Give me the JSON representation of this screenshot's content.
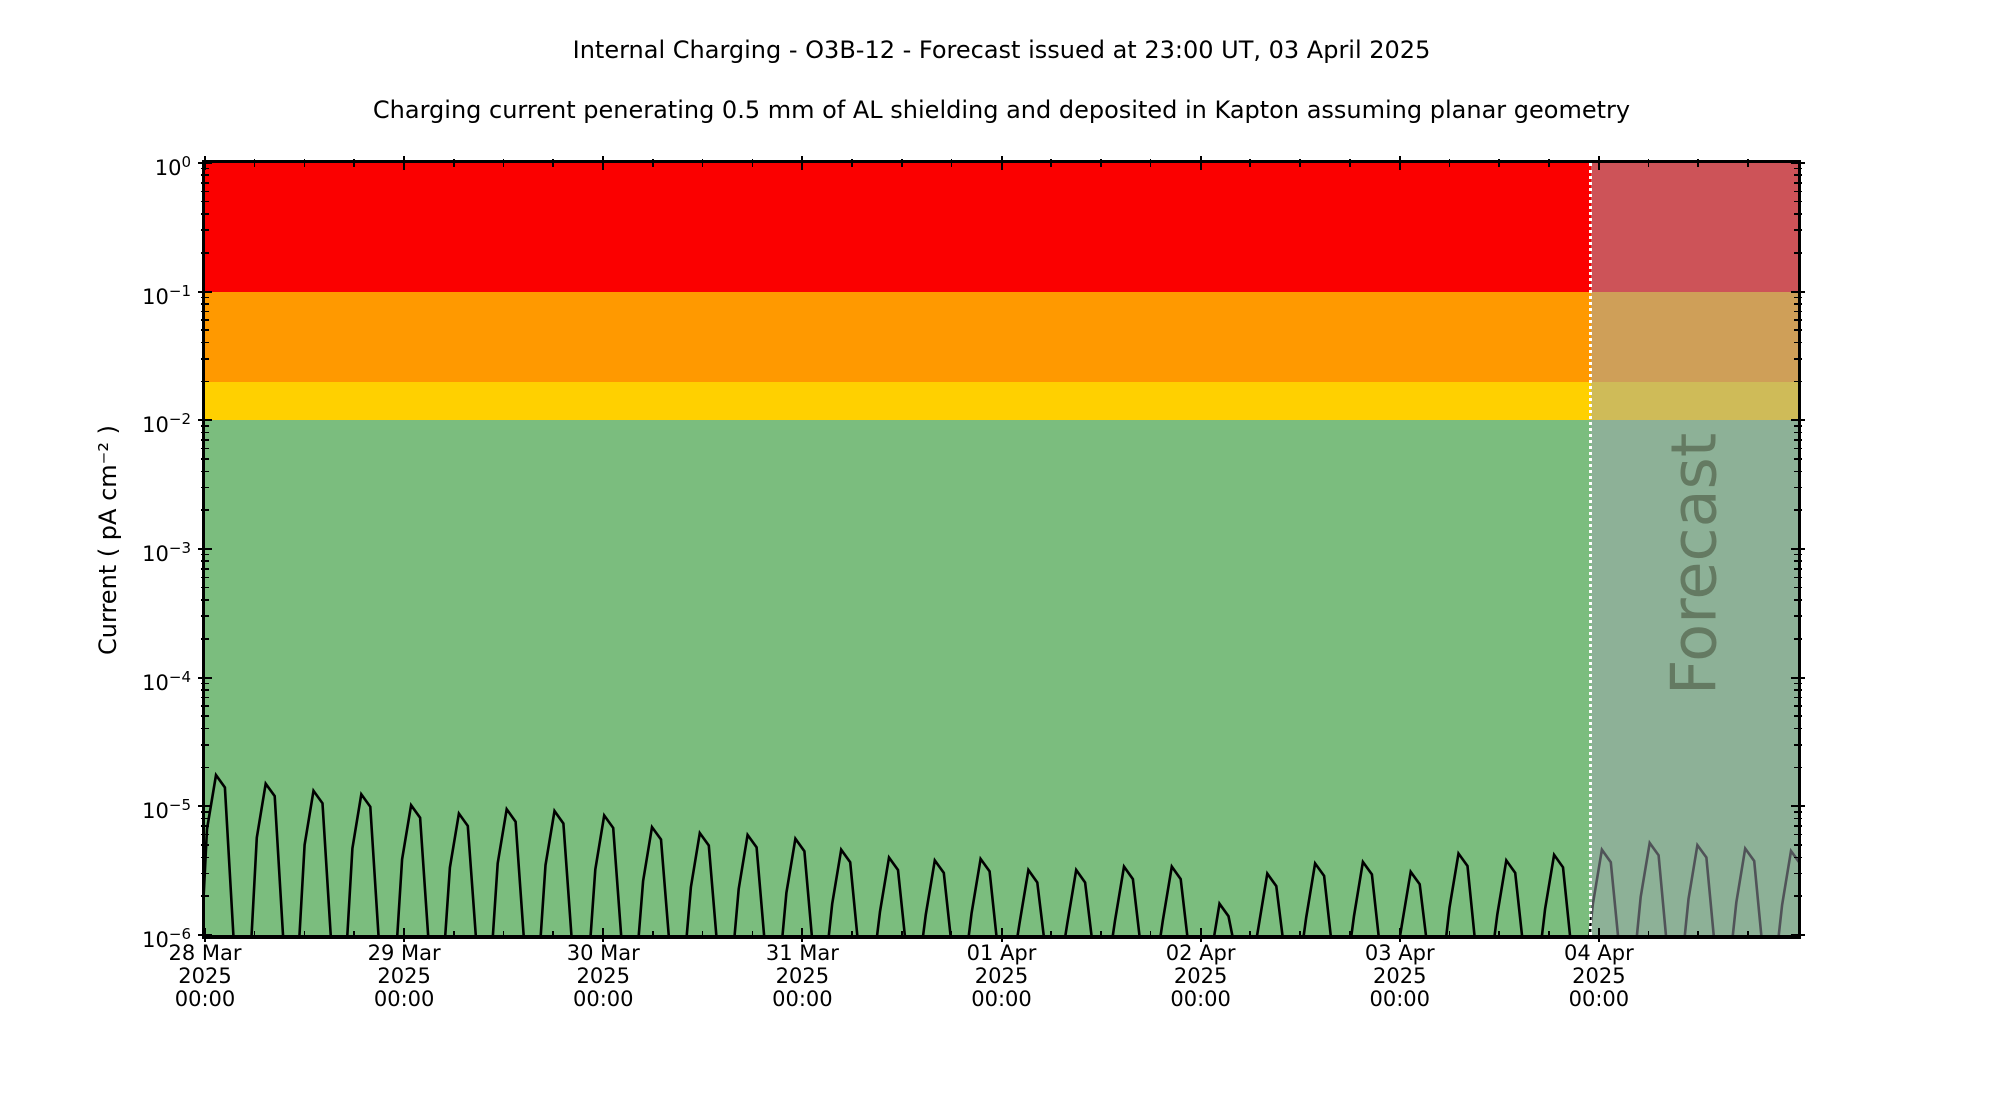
{
  "chart_data": {
    "type": "line",
    "title": "Internal Charging - O3B-12 - Forecast issued at 23:00 UT, 03 April 2025",
    "subtitle": "Charging current penerating 0.5 mm of AL shielding and deposited in Kapton assuming planar geometry",
    "ylabel": "Current ( pA cm⁻² )",
    "y_scale": "log",
    "ylim": [
      1e-06,
      1
    ],
    "y_tick_exponents": [
      0,
      -1,
      -2,
      -3,
      -4,
      -5,
      -6
    ],
    "x_axis_days": 8,
    "x_ticks": [
      {
        "date": "28 Mar",
        "year": "2025",
        "time": "00:00"
      },
      {
        "date": "29 Mar",
        "year": "2025",
        "time": "00:00"
      },
      {
        "date": "30 Mar",
        "year": "2025",
        "time": "00:00"
      },
      {
        "date": "31 Mar",
        "year": "2025",
        "time": "00:00"
      },
      {
        "date": "01 Apr",
        "year": "2025",
        "time": "00:00"
      },
      {
        "date": "02 Apr",
        "year": "2025",
        "time": "00:00"
      },
      {
        "date": "03 Apr",
        "year": "2025",
        "time": "00:00"
      },
      {
        "date": "04 Apr",
        "year": "2025",
        "time": "00:00"
      }
    ],
    "bands": [
      {
        "name": "alert-red",
        "from": 0.1,
        "to": 1.0,
        "color": "#fb0000"
      },
      {
        "name": "warning-orange",
        "from": 0.02,
        "to": 0.1,
        "color": "#ff9900"
      },
      {
        "name": "caution-yellow",
        "from": 0.01,
        "to": 0.02,
        "color": "#ffd000"
      },
      {
        "name": "safe-green",
        "from": 1e-06,
        "to": 0.01,
        "color": "#7bbd7e"
      }
    ],
    "forecast": {
      "label": "Forecast",
      "start_day": 6.9583,
      "end_day": 8,
      "overlay_color": "rgba(160,165,175,0.5)",
      "divider_color": "#ffffff"
    },
    "series": [
      {
        "name": "charging-current",
        "color": "#000000",
        "units": "pA cm^-2",
        "baseline_value": 5.5e-07,
        "peaks": [
          [
            0.06,
            1.75e-05
          ],
          [
            0.31,
            1.5e-05
          ],
          [
            0.55,
            1.32e-05
          ],
          [
            0.79,
            1.24e-05
          ],
          [
            1.04,
            1.02e-05
          ],
          [
            1.28,
            8.8e-06
          ],
          [
            1.52,
            9.5e-06
          ],
          [
            1.76,
            9.2e-06
          ],
          [
            2.01,
            8.5e-06
          ],
          [
            2.25,
            6.9e-06
          ],
          [
            2.49,
            6.2e-06
          ],
          [
            2.73,
            6e-06
          ],
          [
            2.97,
            5.6e-06
          ],
          [
            3.2,
            4.6e-06
          ],
          [
            3.44,
            4e-06
          ],
          [
            3.67,
            3.8e-06
          ],
          [
            3.9,
            3.9e-06
          ],
          [
            4.14,
            3.2e-06
          ],
          [
            4.38,
            3.2e-06
          ],
          [
            4.62,
            3.4e-06
          ],
          [
            4.86,
            3.4e-06
          ],
          [
            5.1,
            1.75e-06
          ],
          [
            5.34,
            3e-06
          ],
          [
            5.58,
            3.6e-06
          ],
          [
            5.82,
            3.7e-06
          ],
          [
            6.06,
            3.1e-06
          ],
          [
            6.3,
            4.3e-06
          ],
          [
            6.54,
            3.8e-06
          ],
          [
            6.78,
            4.2e-06
          ],
          [
            7.02,
            4.6e-06
          ],
          [
            7.26,
            5.2e-06
          ],
          [
            7.5,
            5e-06
          ],
          [
            7.74,
            4.7e-06
          ],
          [
            7.97,
            4.5e-06
          ]
        ]
      }
    ]
  }
}
